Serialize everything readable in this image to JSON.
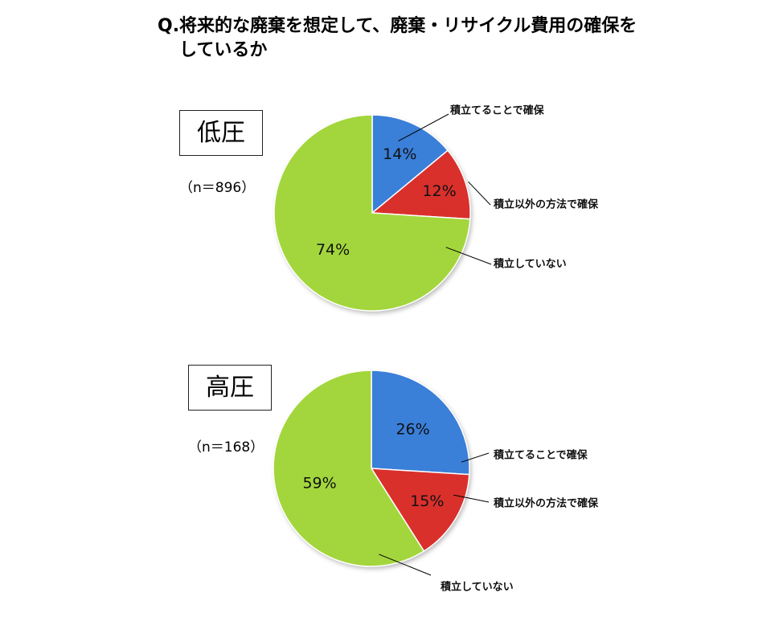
{
  "title": {
    "line1": "Q.将来的な廃棄を想定して、廃棄・リサイクル費用の確保を",
    "line2": "しているか"
  },
  "colors": {
    "blue": "#3a7fd8",
    "red": "#d9302c",
    "green": "#a3d63c"
  },
  "chart_data": [
    {
      "type": "pie",
      "title": "低圧",
      "n_label": "（n＝896）",
      "labels": [
        "積立てることで確保",
        "積立以外の方法で確保",
        "積立していない"
      ],
      "values": [
        14,
        12,
        74
      ],
      "value_labels": [
        "14%",
        "12%",
        "74%"
      ]
    },
    {
      "type": "pie",
      "title": "高圧",
      "n_label": "（n＝168）",
      "labels": [
        "積立てることで確保",
        "積立以外の方法で確保",
        "積立していない"
      ],
      "values": [
        26,
        15,
        59
      ],
      "value_labels": [
        "26%",
        "15%",
        "59%"
      ]
    }
  ]
}
